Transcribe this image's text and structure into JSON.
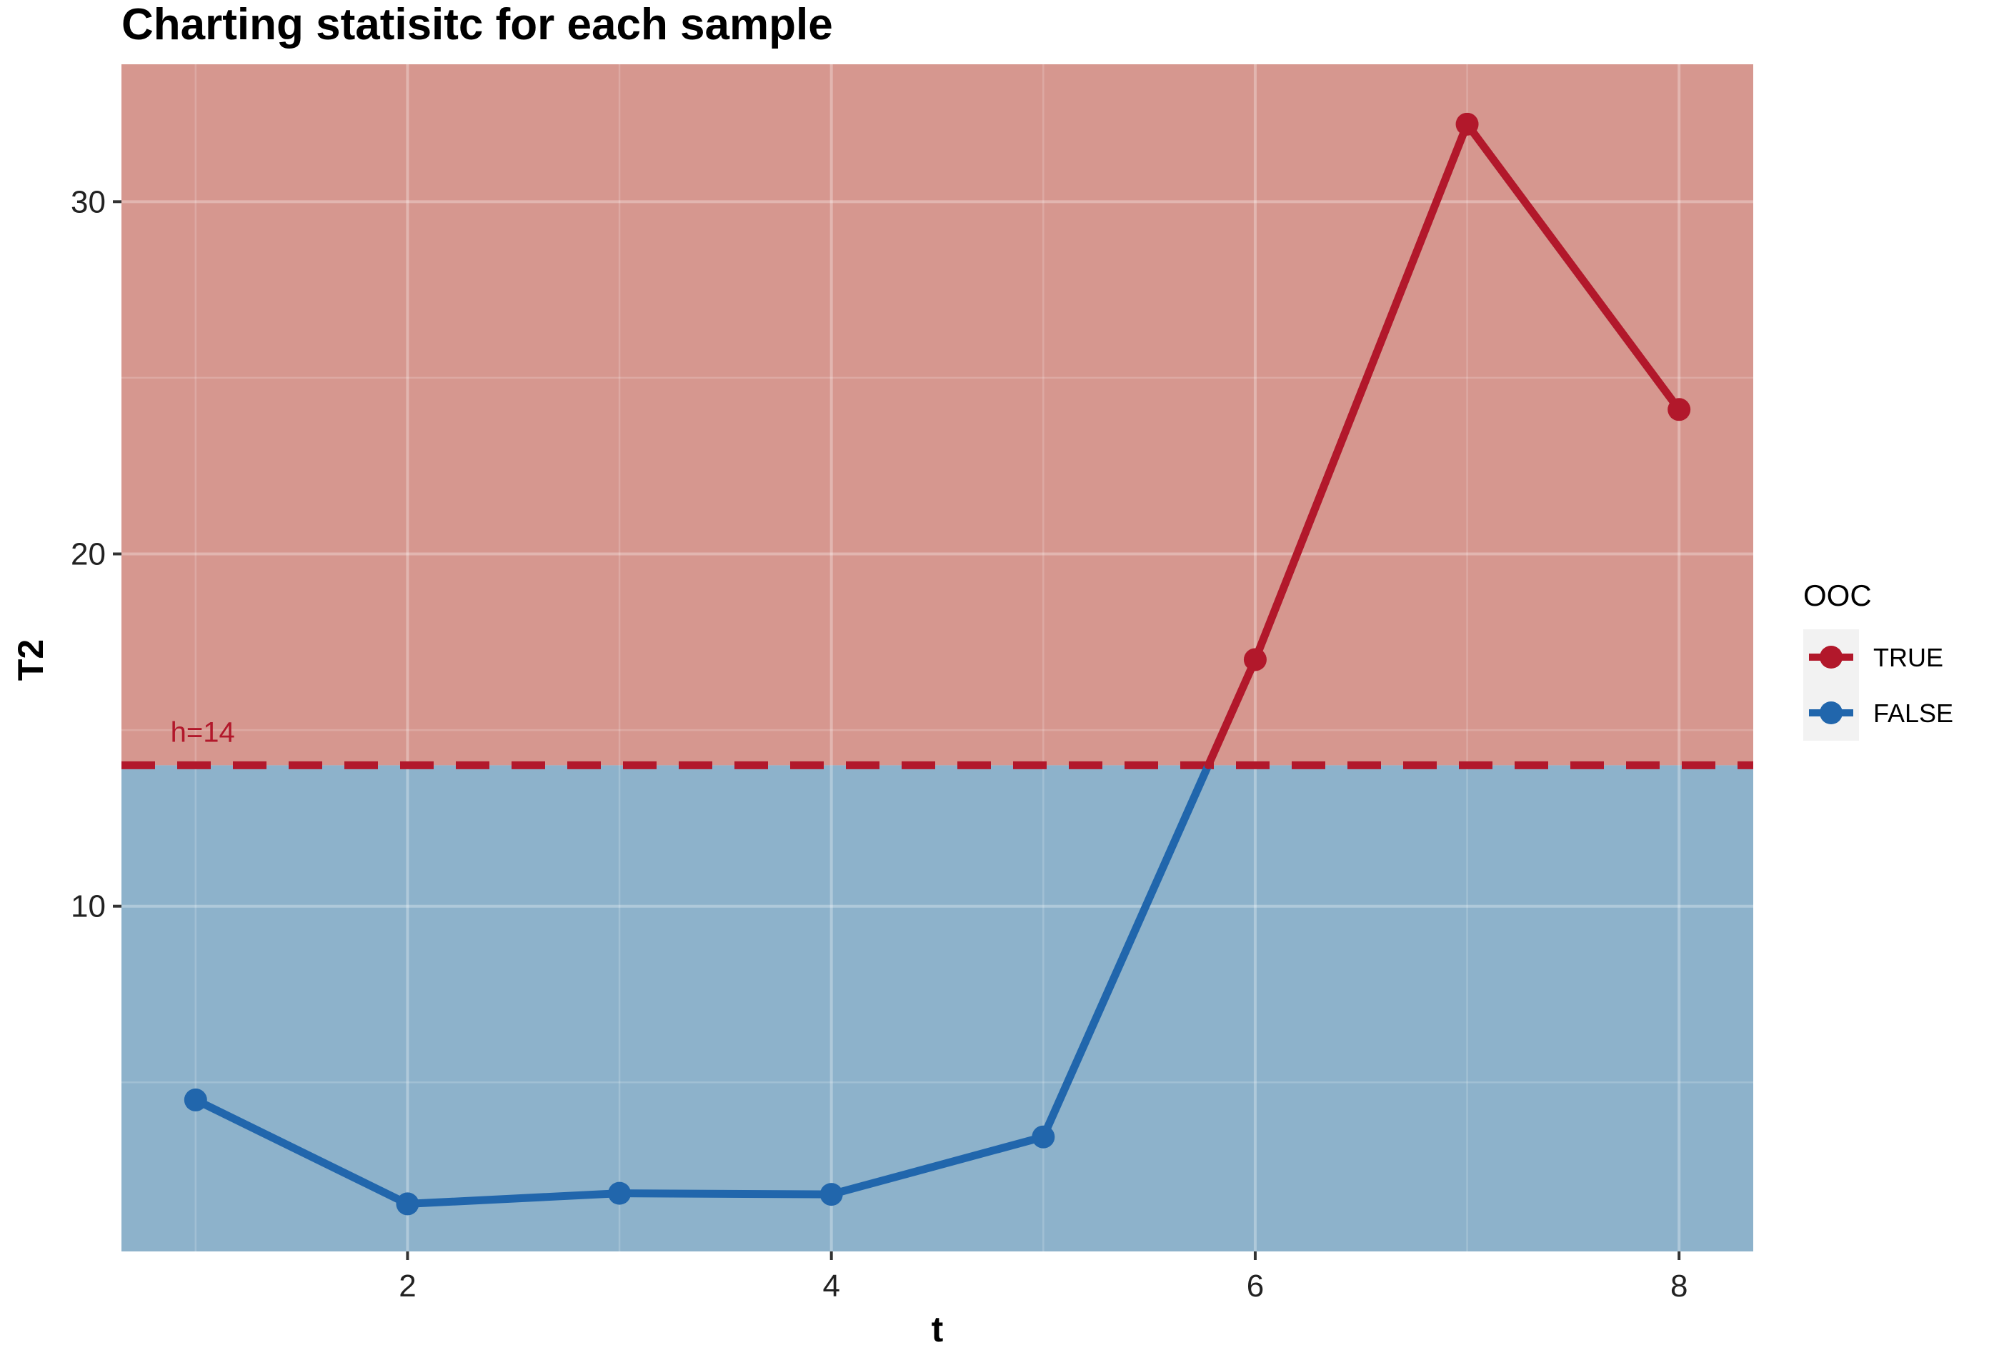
{
  "chart_data": {
    "type": "line",
    "title": "Charting statisitc for each sample",
    "xlabel": "t",
    "ylabel": "T2",
    "xlim": [
      0.65,
      8.35
    ],
    "ylim": [
      0.2,
      33.9
    ],
    "x_ticks": [
      2,
      4,
      6,
      8
    ],
    "y_ticks": [
      10,
      20,
      30
    ],
    "x": [
      1,
      2,
      3,
      4,
      5,
      6,
      7,
      8
    ],
    "values": [
      4.5,
      1.55,
      1.85,
      1.82,
      3.45,
      17.0,
      32.2,
      24.1
    ],
    "threshold": {
      "value": 14,
      "label": "h=14",
      "color": "#b2182b"
    },
    "regions": {
      "above_color": "#d6978f",
      "below_color": "#8db2cb"
    },
    "grid": true,
    "legend": {
      "title": "OOC",
      "position": "right",
      "entries": [
        {
          "label": "TRUE",
          "color": "#b2182b"
        },
        {
          "label": "FALSE",
          "color": "#2166ac"
        }
      ]
    },
    "series": [
      {
        "name": "TRUE",
        "color": "#b2182b"
      },
      {
        "name": "FALSE",
        "color": "#2166ac"
      }
    ]
  }
}
